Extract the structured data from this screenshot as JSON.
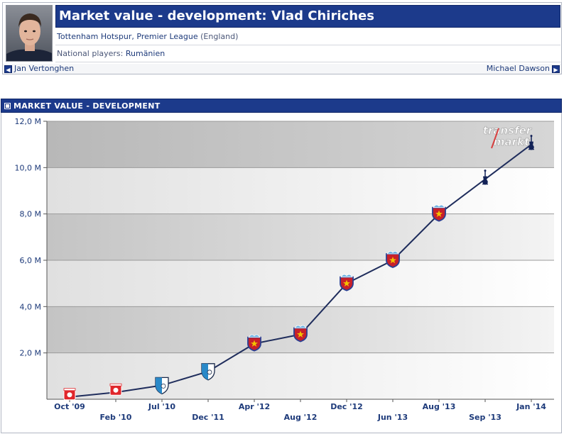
{
  "player": {
    "title": "Market value - development: Vlad Chiriches",
    "club": "Tottenham Hotspur",
    "league": "Premier League",
    "country": "(England)",
    "national_label": "National players:",
    "national_value": "Rumänien",
    "prev_player": "Jan Vertonghen",
    "next_player": "Michael Dawson"
  },
  "section": {
    "title": "MARKET VALUE - DEVELOPMENT"
  },
  "watermark": {
    "line1": "transfer",
    "line2": "markt"
  },
  "chart_data": {
    "type": "line",
    "title": "",
    "xlabel": "",
    "ylabel": "",
    "ylim": [
      0,
      12
    ],
    "yticks": [
      {
        "value": 2,
        "label": "2,0 M"
      },
      {
        "value": 4,
        "label": "4,0 M"
      },
      {
        "value": 6,
        "label": "6,0 M"
      },
      {
        "value": 8,
        "label": "8,0 M"
      },
      {
        "value": 10,
        "label": "10,0 M"
      },
      {
        "value": 12,
        "label": "12,0 M"
      }
    ],
    "grid": true,
    "categories": [
      "Oct '09",
      "Feb '10",
      "Jul '10",
      "Dec '11",
      "Apr '12",
      "Aug '12",
      "Dec '12",
      "Jun '13",
      "Aug '13",
      "Sep '13",
      "Jan '14"
    ],
    "values": [
      0.1,
      0.3,
      0.6,
      1.2,
      2.4,
      2.8,
      5.0,
      6.0,
      8.0,
      9.5,
      11.0
    ],
    "point_clubs": [
      "dinamo",
      "dinamo",
      "fcu",
      "fcu",
      "steaua",
      "steaua",
      "steaua",
      "steaua",
      "steaua",
      "spurs",
      "spurs"
    ],
    "colors": {
      "line": "#1f2d5c",
      "dinamo": "#e0262b",
      "fcu": "#2a89c8",
      "steaua_red": "#c8202a",
      "steaua_blue": "#2a3f93",
      "steaua_sky": "#6fb2e2",
      "spurs": "#132257"
    }
  }
}
